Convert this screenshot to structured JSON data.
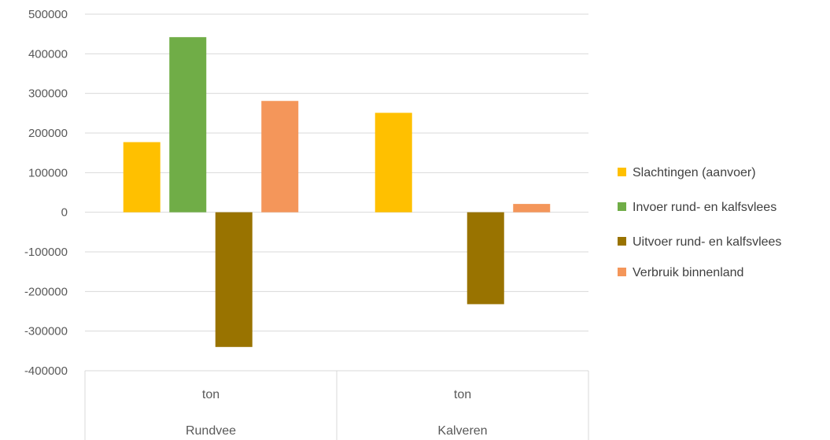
{
  "chart_data": {
    "type": "bar",
    "groups": [
      {
        "unit": "ton",
        "category": "Rundvee"
      },
      {
        "unit": "ton",
        "category": "Kalveren"
      }
    ],
    "series": [
      {
        "name": "Slachtingen (aanvoer)",
        "color": "#FFC000",
        "values": [
          177000,
          251000
        ]
      },
      {
        "name": "Invoer rund- en kalfsvlees",
        "color": "#70AD47",
        "values": [
          442000,
          null
        ]
      },
      {
        "name": "Uitvoer rund- en kalfsvlees",
        "color": "#997300",
        "values": [
          -340000,
          -232000
        ]
      },
      {
        "name": "Verbruik binnenland",
        "color": "#F4965A",
        "values": [
          281000,
          21000
        ]
      }
    ],
    "ylim": [
      -400000,
      500000
    ],
    "yticks": [
      "500000",
      "400000",
      "300000",
      "200000",
      "100000",
      "0",
      "-100000",
      "-200000",
      "-300000",
      "-400000"
    ],
    "grid": true,
    "legend": "right"
  }
}
